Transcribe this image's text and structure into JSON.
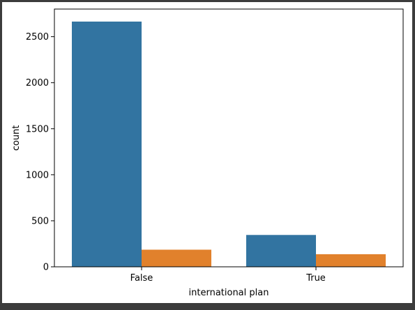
{
  "chart_data": {
    "type": "bar",
    "xlabel": "international plan",
    "ylabel": "count",
    "categories": [
      "False",
      "True"
    ],
    "series": [
      {
        "values": [
          2664,
          346
        ],
        "color": "#3274a1"
      },
      {
        "values": [
          186,
          137
        ],
        "color": "#e1812c"
      }
    ],
    "ylim": [
      0,
      2800
    ],
    "yticks": [
      0,
      500,
      1000,
      1500,
      2000,
      2500
    ],
    "grid": false
  }
}
